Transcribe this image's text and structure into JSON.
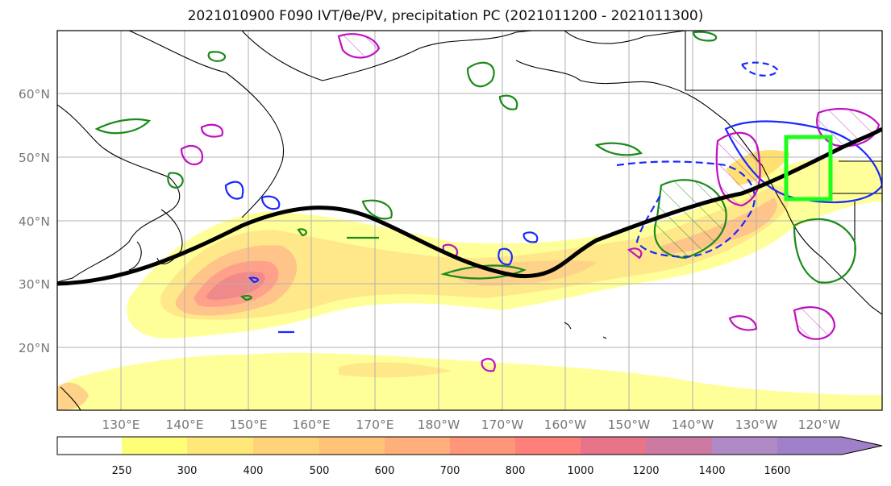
{
  "title": "2021010900 F090 IVT/θe/PV, precipitation PC (2021011200 - 2021011300)",
  "map": {
    "lon_labels": [
      "130°E",
      "140°E",
      "150°E",
      "160°E",
      "170°E",
      "180°W",
      "170°W",
      "160°W",
      "150°W",
      "140°W",
      "130°W",
      "120°W"
    ],
    "lat_labels": [
      "60°N",
      "50°N",
      "40°N",
      "30°N",
      "20°N"
    ],
    "lon_values": [
      130,
      140,
      150,
      160,
      170,
      180,
      190,
      200,
      210,
      220,
      230,
      240
    ],
    "lat_values": [
      60,
      50,
      40,
      30,
      20
    ],
    "lon_range": [
      120,
      250
    ],
    "lat_range": [
      10,
      70
    ],
    "box_color": "#1aff1a",
    "theta_e_line_color": "#000000"
  },
  "colorbar": {
    "levels": [
      "250",
      "300",
      "400",
      "500",
      "600",
      "700",
      "800",
      "1000",
      "1200",
      "1400",
      "1600"
    ],
    "colors": [
      "#ffffff",
      "#ffff77",
      "#ffe877",
      "#ffd277",
      "#ffc277",
      "#ffb07a",
      "#ff967a",
      "#ff807a",
      "#e8748a",
      "#cc7aa2",
      "#b08ac6",
      "#a080c8"
    ],
    "extend": "max"
  }
}
